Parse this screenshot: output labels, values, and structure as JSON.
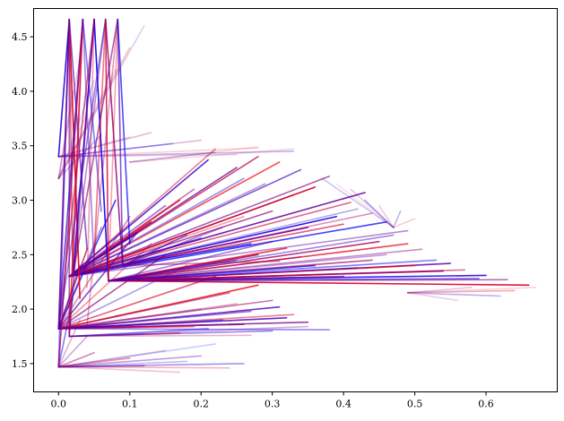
{
  "chart_data": {
    "type": "line",
    "title": "",
    "xlabel": "",
    "ylabel": "",
    "xlim": [
      -0.035,
      0.7
    ],
    "ylim": [
      1.24,
      4.76
    ],
    "x_ticks": [
      0.0,
      0.1,
      0.2,
      0.3,
      0.4,
      0.5,
      0.6
    ],
    "x_tick_labels": [
      "0.0",
      "0.1",
      "0.2",
      "0.3",
      "0.4",
      "0.5",
      "0.6"
    ],
    "y_ticks": [
      1.5,
      2.0,
      2.5,
      3.0,
      3.5,
      4.0,
      4.5
    ],
    "y_tick_labels": [
      "1.5",
      "2.0",
      "2.5",
      "3.0",
      "3.5",
      "4.0",
      "4.5"
    ],
    "grid": false,
    "legend": "none",
    "colors": {
      "start": "#0000ff",
      "end": "#ff0000",
      "axis": "#000000"
    },
    "segment_families": [
      {
        "origin": [
          0.0,
          1.47
        ],
        "alpha_scale": 0.6,
        "endpoints": [
          [
            0.22,
            1.68
          ],
          [
            0.2,
            1.57
          ],
          [
            0.17,
            1.42
          ],
          [
            0.26,
            1.5
          ],
          [
            0.15,
            1.62
          ],
          [
            0.1,
            1.55
          ],
          [
            0.18,
            1.52
          ],
          [
            0.05,
            1.6
          ],
          [
            0.24,
            1.46
          ],
          [
            0.12,
            1.48
          ],
          [
            0.03,
            1.9
          ],
          [
            0.02,
            2.1
          ],
          [
            0.04,
            1.75
          ]
        ]
      },
      {
        "origin": [
          0.0,
          1.82
        ],
        "alpha_scale": 0.9,
        "endpoints": [
          [
            0.38,
            1.81
          ],
          [
            0.35,
            1.88
          ],
          [
            0.33,
            1.95
          ],
          [
            0.31,
            2.02
          ],
          [
            0.3,
            2.08
          ],
          [
            0.28,
            2.22
          ],
          [
            0.27,
            1.98
          ],
          [
            0.25,
            2.05
          ],
          [
            0.23,
            1.9
          ],
          [
            0.2,
            2.0
          ],
          [
            0.22,
            2.3
          ],
          [
            0.18,
            2.4
          ],
          [
            0.15,
            2.5
          ],
          [
            0.13,
            2.6
          ],
          [
            0.11,
            2.7
          ],
          [
            0.1,
            2.85
          ],
          [
            0.08,
            3.0
          ],
          [
            0.06,
            2.75
          ],
          [
            0.04,
            2.55
          ],
          [
            0.03,
            2.4
          ],
          [
            0.26,
            1.86
          ],
          [
            0.19,
            1.84
          ],
          [
            0.32,
            1.92
          ],
          [
            0.24,
            2.15
          ]
        ]
      },
      {
        "origin": [
          0.015,
          1.75
        ],
        "alpha_scale": 0.7,
        "endpoints": [
          [
            0.3,
            1.8
          ],
          [
            0.27,
            1.76
          ],
          [
            0.21,
            1.82
          ],
          [
            0.35,
            1.84
          ],
          [
            0.17,
            1.78
          ],
          [
            0.12,
            1.77
          ]
        ]
      },
      {
        "origin": [
          0.015,
          2.3
        ],
        "alpha_scale": 1.0,
        "endpoints": [
          [
            0.43,
            3.07
          ],
          [
            0.41,
            2.98
          ],
          [
            0.39,
            2.85
          ],
          [
            0.38,
            3.22
          ],
          [
            0.36,
            3.12
          ],
          [
            0.34,
            3.28
          ],
          [
            0.33,
            3.05
          ],
          [
            0.31,
            3.35
          ],
          [
            0.29,
            3.15
          ],
          [
            0.28,
            3.4
          ],
          [
            0.26,
            3.2
          ],
          [
            0.25,
            3.3
          ],
          [
            0.22,
            3.47
          ],
          [
            0.21,
            3.37
          ],
          [
            0.19,
            3.1
          ],
          [
            0.17,
            3.0
          ],
          [
            0.15,
            2.95
          ],
          [
            0.13,
            2.8
          ],
          [
            0.11,
            2.7
          ],
          [
            0.35,
            2.75
          ],
          [
            0.4,
            2.78
          ],
          [
            0.42,
            2.92
          ],
          [
            0.3,
            2.9
          ],
          [
            0.26,
            2.85
          ],
          [
            0.2,
            2.65
          ],
          [
            0.44,
            2.88
          ],
          [
            0.46,
            2.8
          ],
          [
            0.49,
            2.72
          ]
        ]
      },
      {
        "origin": [
          0.07,
          2.26
        ],
        "alpha_scale": 1.0,
        "endpoints": [
          [
            0.51,
            2.55
          ],
          [
            0.49,
            2.6
          ],
          [
            0.47,
            2.68
          ],
          [
            0.45,
            2.62
          ],
          [
            0.53,
            2.45
          ],
          [
            0.55,
            2.42
          ],
          [
            0.57,
            2.36
          ],
          [
            0.6,
            2.31
          ],
          [
            0.63,
            2.27
          ],
          [
            0.66,
            2.22
          ],
          [
            0.59,
            2.28
          ],
          [
            0.54,
            2.35
          ],
          [
            0.5,
            2.4
          ],
          [
            0.46,
            2.5
          ],
          [
            0.44,
            2.45
          ],
          [
            0.42,
            2.38
          ],
          [
            0.4,
            2.3
          ],
          [
            0.38,
            2.32
          ],
          [
            0.36,
            2.4
          ],
          [
            0.34,
            2.48
          ],
          [
            0.32,
            2.56
          ],
          [
            0.3,
            2.62
          ],
          [
            0.28,
            2.5
          ],
          [
            0.25,
            2.45
          ]
        ]
      },
      {
        "origin": [
          0.09,
          2.4
        ],
        "alpha_scale": 0.8,
        "endpoints": [
          [
            0.31,
            2.44
          ],
          [
            0.27,
            2.6
          ],
          [
            0.23,
            2.75
          ],
          [
            0.2,
            2.55
          ],
          [
            0.18,
            2.68
          ],
          [
            0.16,
            2.62
          ]
        ]
      },
      {
        "origin": [
          0.0,
          3.4
        ],
        "alpha_scale": 0.35,
        "endpoints": [
          [
            0.13,
            3.62
          ],
          [
            0.1,
            3.58
          ],
          [
            0.2,
            3.55
          ],
          [
            0.28,
            3.48
          ],
          [
            0.33,
            3.45
          ],
          [
            0.25,
            3.42
          ],
          [
            0.16,
            3.52
          ]
        ]
      },
      {
        "origin": [
          0.1,
          3.35
        ],
        "alpha_scale": 0.4,
        "endpoints": [
          [
            0.28,
            3.49
          ],
          [
            0.22,
            3.44
          ],
          [
            0.33,
            3.47
          ]
        ]
      },
      {
        "origin": [
          0.015,
          4.66
        ],
        "alpha_scale": 1.0,
        "endpoints": [
          [
            0.0,
            1.47
          ],
          [
            0.0,
            1.82
          ],
          [
            0.02,
            2.3
          ],
          [
            0.0,
            3.4
          ],
          [
            0.015,
            1.75
          ],
          [
            0.03,
            2.1
          ],
          [
            0.04,
            2.55
          ]
        ]
      },
      {
        "origin": [
          0.034,
          4.66
        ],
        "alpha_scale": 1.0,
        "endpoints": [
          [
            0.0,
            1.82
          ],
          [
            0.02,
            2.3
          ],
          [
            0.015,
            1.75
          ],
          [
            0.05,
            2.4
          ],
          [
            0.0,
            1.47
          ],
          [
            0.06,
            2.9
          ]
        ]
      },
      {
        "origin": [
          0.05,
          4.66
        ],
        "alpha_scale": 1.0,
        "endpoints": [
          [
            0.02,
            2.3
          ],
          [
            0.0,
            1.82
          ],
          [
            0.07,
            2.26
          ],
          [
            0.015,
            1.75
          ],
          [
            0.04,
            2.2
          ]
        ]
      },
      {
        "origin": [
          0.066,
          4.66
        ],
        "alpha_scale": 1.0,
        "endpoints": [
          [
            0.02,
            2.3
          ],
          [
            0.07,
            2.26
          ],
          [
            0.0,
            1.82
          ],
          [
            0.09,
            2.4
          ],
          [
            0.05,
            2.5
          ]
        ]
      },
      {
        "origin": [
          0.083,
          4.66
        ],
        "alpha_scale": 1.0,
        "endpoints": [
          [
            0.02,
            2.3
          ],
          [
            0.07,
            2.26
          ],
          [
            0.09,
            2.4
          ],
          [
            0.04,
            1.85
          ],
          [
            0.1,
            2.6
          ]
        ]
      },
      {
        "origin": [
          0.0,
          3.2
        ],
        "alpha_scale": 0.3,
        "endpoints": [
          [
            0.03,
            4.3
          ],
          [
            0.05,
            4.1
          ],
          [
            0.02,
            4.0
          ],
          [
            0.04,
            3.8
          ],
          [
            0.06,
            3.6
          ],
          [
            0.08,
            4.2
          ],
          [
            0.1,
            4.4
          ],
          [
            0.12,
            4.6
          ]
        ]
      },
      {
        "origin": [
          0.49,
          2.15
        ],
        "alpha_scale": 0.45,
        "endpoints": [
          [
            0.67,
            2.2
          ],
          [
            0.62,
            2.12
          ],
          [
            0.56,
            2.08
          ],
          [
            0.64,
            2.17
          ],
          [
            0.58,
            2.2
          ]
        ]
      },
      {
        "origin": [
          0.47,
          2.75
        ],
        "alpha_scale": 0.35,
        "endpoints": [
          [
            0.5,
            2.83
          ],
          [
            0.48,
            2.9
          ],
          [
            0.45,
            2.95
          ],
          [
            0.43,
            3.0
          ],
          [
            0.41,
            3.1
          ],
          [
            0.39,
            3.15
          ],
          [
            0.37,
            3.2
          ]
        ]
      }
    ]
  }
}
